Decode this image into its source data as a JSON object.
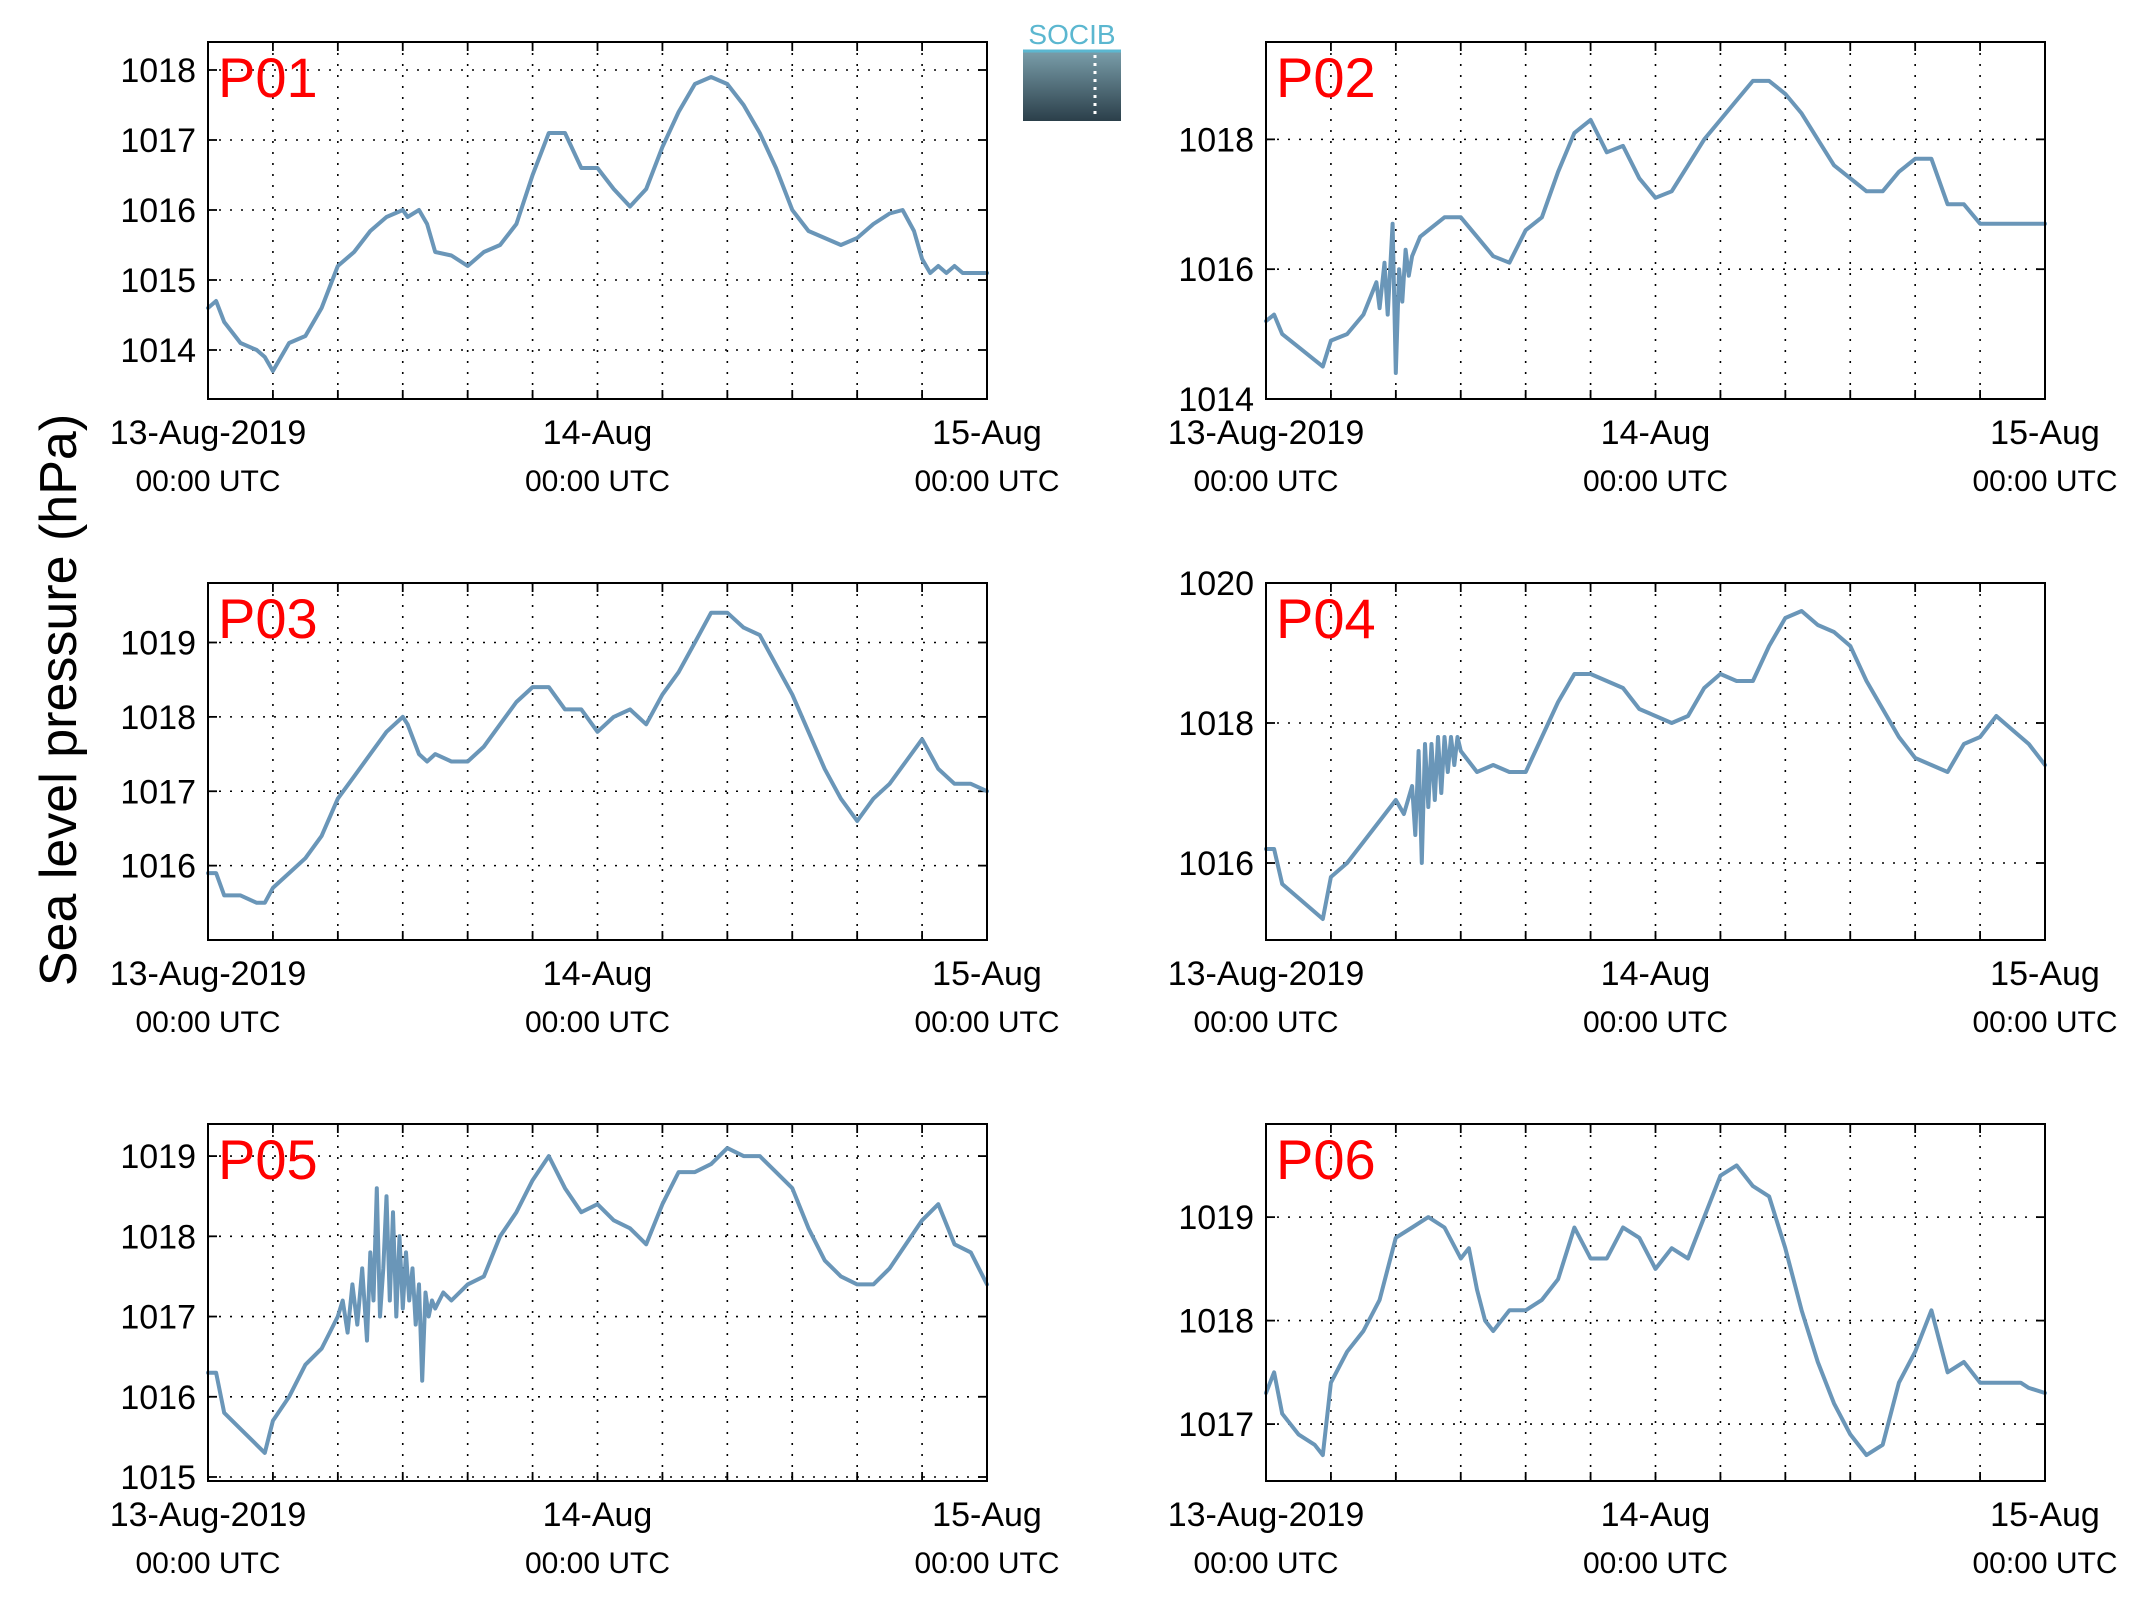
{
  "figure": {
    "ylabel": "Sea level pressure (hPa)",
    "logo_text": "SOCIB",
    "line_color": "#6a96b8",
    "title_color": "#ff0000"
  },
  "chart_data": [
    {
      "type": "line",
      "title": "P01",
      "xlabels": [
        {
          "x": 0,
          "line1": "13-Aug-2019",
          "line2": "00:00 UTC"
        },
        {
          "x": 24,
          "line1": "14-Aug",
          "line2": "00:00 UTC"
        },
        {
          "x": 48,
          "line1": "15-Aug",
          "line2": "00:00 UTC"
        }
      ],
      "xlim": [
        0,
        48
      ],
      "ylim": [
        1013.3,
        1018.4
      ],
      "yticks": [
        1014,
        1015,
        1016,
        1017,
        1018
      ],
      "grid": true,
      "series": [
        {
          "x": [
            0,
            0.5,
            1,
            2,
            3,
            3.5,
            4,
            5,
            6,
            7,
            8,
            9,
            10,
            11,
            12,
            12.3,
            13,
            13.5,
            14,
            15,
            16,
            17,
            18,
            19,
            20,
            21,
            22,
            23,
            24,
            25,
            26,
            27,
            28,
            29,
            30,
            31,
            32,
            33,
            34,
            35,
            36,
            37,
            38,
            39,
            40,
            41,
            42,
            42.8,
            43.5,
            44,
            44.5,
            45,
            45.5,
            46,
            46.5,
            47,
            48
          ],
          "y": [
            1014.6,
            1014.7,
            1014.4,
            1014.1,
            1014.0,
            1013.9,
            1013.7,
            1014.1,
            1014.2,
            1014.6,
            1015.2,
            1015.4,
            1015.7,
            1015.9,
            1016.0,
            1015.9,
            1016.0,
            1015.8,
            1015.4,
            1015.35,
            1015.2,
            1015.4,
            1015.5,
            1015.8,
            1016.5,
            1017.1,
            1017.1,
            1016.6,
            1016.6,
            1016.3,
            1016.05,
            1016.3,
            1016.9,
            1017.4,
            1017.8,
            1017.9,
            1017.8,
            1017.5,
            1017.1,
            1016.6,
            1016.0,
            1015.7,
            1015.6,
            1015.5,
            1015.6,
            1015.8,
            1015.95,
            1016.0,
            1015.7,
            1015.3,
            1015.1,
            1015.2,
            1015.1,
            1015.2,
            1015.1,
            1015.1,
            1015.1
          ]
        }
      ]
    },
    {
      "type": "line",
      "title": "P02",
      "xlabels": [
        {
          "x": 0,
          "line1": "13-Aug-2019",
          "line2": "00:00 UTC"
        },
        {
          "x": 24,
          "line1": "14-Aug",
          "line2": "00:00 UTC"
        },
        {
          "x": 48,
          "line1": "15-Aug",
          "line2": "00:00 UTC"
        }
      ],
      "xlim": [
        0,
        48
      ],
      "ylim": [
        1014,
        1019.5
      ],
      "yticks": [
        1014,
        1016,
        1018
      ],
      "grid": true,
      "series": [
        {
          "x": [
            0,
            0.5,
            1,
            2,
            3,
            3.5,
            4,
            5,
            6,
            6.8,
            7,
            7.3,
            7.5,
            7.8,
            8,
            8.2,
            8.4,
            8.6,
            8.8,
            9,
            9.5,
            10,
            11,
            12,
            13,
            14,
            15,
            16,
            17,
            18,
            19,
            20,
            21,
            22,
            23,
            24,
            25,
            26,
            27,
            28,
            29,
            30,
            31,
            32,
            33,
            34,
            35,
            36,
            37,
            38,
            39,
            40,
            41,
            42,
            43,
            44,
            45,
            46,
            47,
            48
          ],
          "y": [
            1015.2,
            1015.3,
            1015.0,
            1014.8,
            1014.6,
            1014.5,
            1014.9,
            1015.0,
            1015.3,
            1015.8,
            1015.4,
            1016.1,
            1015.3,
            1016.7,
            1014.4,
            1016.0,
            1015.5,
            1016.3,
            1015.9,
            1016.2,
            1016.5,
            1016.6,
            1016.8,
            1016.8,
            1016.5,
            1016.2,
            1016.1,
            1016.6,
            1016.8,
            1017.5,
            1018.1,
            1018.3,
            1017.8,
            1017.9,
            1017.4,
            1017.1,
            1017.2,
            1017.6,
            1018.0,
            1018.3,
            1018.6,
            1018.9,
            1018.9,
            1018.7,
            1018.4,
            1018.0,
            1017.6,
            1017.4,
            1017.2,
            1017.2,
            1017.5,
            1017.7,
            1017.7,
            1017.0,
            1017.0,
            1016.7,
            1016.7,
            1016.7,
            1016.7,
            1016.7
          ]
        }
      ]
    },
    {
      "type": "line",
      "title": "P03",
      "xlabels": [
        {
          "x": 0,
          "line1": "13-Aug-2019",
          "line2": "00:00 UTC"
        },
        {
          "x": 24,
          "line1": "14-Aug",
          "line2": "00:00 UTC"
        },
        {
          "x": 48,
          "line1": "15-Aug",
          "line2": "00:00 UTC"
        }
      ],
      "xlim": [
        0,
        48
      ],
      "ylim": [
        1015,
        1019.8
      ],
      "yticks": [
        1016,
        1017,
        1018,
        1019
      ],
      "grid": true,
      "series": [
        {
          "x": [
            0,
            0.5,
            1,
            2,
            3,
            3.5,
            4,
            5,
            6,
            7,
            8,
            9,
            10,
            11,
            12,
            12.3,
            13,
            13.5,
            14,
            15,
            16,
            17,
            18,
            19,
            20,
            21,
            22,
            23,
            24,
            25,
            26,
            27,
            28,
            29,
            30,
            31,
            32,
            33,
            34,
            35,
            36,
            37,
            38,
            39,
            40,
            41,
            42,
            43,
            44,
            45,
            46,
            47,
            48
          ],
          "y": [
            1015.9,
            1015.9,
            1015.6,
            1015.6,
            1015.5,
            1015.5,
            1015.7,
            1015.9,
            1016.1,
            1016.4,
            1016.9,
            1017.2,
            1017.5,
            1017.8,
            1018.0,
            1017.9,
            1017.5,
            1017.4,
            1017.5,
            1017.4,
            1017.4,
            1017.6,
            1017.9,
            1018.2,
            1018.4,
            1018.4,
            1018.1,
            1018.1,
            1017.8,
            1018.0,
            1018.1,
            1017.9,
            1018.3,
            1018.6,
            1019.0,
            1019.4,
            1019.4,
            1019.2,
            1019.1,
            1018.7,
            1018.3,
            1017.8,
            1017.3,
            1016.9,
            1016.6,
            1016.9,
            1017.1,
            1017.4,
            1017.7,
            1017.3,
            1017.1,
            1017.1,
            1017.0
          ]
        }
      ]
    },
    {
      "type": "line",
      "title": "P04",
      "xlabels": [
        {
          "x": 0,
          "line1": "13-Aug-2019",
          "line2": "00:00 UTC"
        },
        {
          "x": 24,
          "line1": "14-Aug",
          "line2": "00:00 UTC"
        },
        {
          "x": 48,
          "line1": "15-Aug",
          "line2": "00:00 UTC"
        }
      ],
      "xlim": [
        0,
        48
      ],
      "ylim": [
        1014.9,
        1020
      ],
      "yticks": [
        1016,
        1018,
        1020
      ],
      "grid": true,
      "series": [
        {
          "x": [
            0,
            0.5,
            1,
            2,
            3,
            3.5,
            4,
            5,
            6,
            7,
            8,
            8.5,
            9,
            9.2,
            9.4,
            9.6,
            9.8,
            10,
            10.2,
            10.4,
            10.6,
            10.8,
            11,
            11.2,
            11.4,
            11.6,
            11.8,
            12,
            13,
            14,
            15,
            16,
            17,
            18,
            19,
            20,
            21,
            22,
            23,
            24,
            25,
            26,
            27,
            28,
            29,
            30,
            31,
            32,
            33,
            34,
            35,
            36,
            37,
            38,
            39,
            40,
            41,
            42,
            43,
            44,
            45,
            46,
            47,
            48
          ],
          "y": [
            1016.2,
            1016.2,
            1015.7,
            1015.5,
            1015.3,
            1015.2,
            1015.8,
            1016.0,
            1016.3,
            1016.6,
            1016.9,
            1016.7,
            1017.1,
            1016.4,
            1017.6,
            1016.0,
            1017.7,
            1016.8,
            1017.7,
            1016.9,
            1017.8,
            1017.0,
            1017.8,
            1017.3,
            1017.8,
            1017.4,
            1017.8,
            1017.6,
            1017.3,
            1017.4,
            1017.3,
            1017.3,
            1017.8,
            1018.3,
            1018.7,
            1018.7,
            1018.6,
            1018.5,
            1018.2,
            1018.1,
            1018.0,
            1018.1,
            1018.5,
            1018.7,
            1018.6,
            1018.6,
            1019.1,
            1019.5,
            1019.6,
            1019.4,
            1019.3,
            1019.1,
            1018.6,
            1018.2,
            1017.8,
            1017.5,
            1017.4,
            1017.3,
            1017.7,
            1017.8,
            1018.1,
            1017.9,
            1017.7,
            1017.4
          ]
        }
      ]
    },
    {
      "type": "line",
      "title": "P05",
      "xlabels": [
        {
          "x": 0,
          "line1": "13-Aug-2019",
          "line2": "00:00 UTC"
        },
        {
          "x": 24,
          "line1": "14-Aug",
          "line2": "00:00 UTC"
        },
        {
          "x": 48,
          "line1": "15-Aug",
          "line2": "00:00 UTC"
        }
      ],
      "xlim": [
        0,
        48
      ],
      "ylim": [
        1014.95,
        1019.4
      ],
      "yticks": [
        1015,
        1016,
        1017,
        1018,
        1019
      ],
      "grid": true,
      "series": [
        {
          "x": [
            0,
            0.5,
            1,
            2,
            3,
            3.5,
            4,
            5,
            6,
            7,
            7.5,
            8,
            8.3,
            8.6,
            8.9,
            9.2,
            9.5,
            9.8,
            10,
            10.2,
            10.4,
            10.6,
            10.8,
            11,
            11.2,
            11.4,
            11.6,
            11.8,
            12,
            12.2,
            12.4,
            12.6,
            12.8,
            13,
            13.2,
            13.4,
            13.6,
            13.8,
            14,
            14.5,
            15,
            16,
            17,
            18,
            19,
            20,
            21,
            22,
            23,
            24,
            25,
            26,
            27,
            28,
            29,
            30,
            31,
            32,
            33,
            34,
            35,
            36,
            37,
            38,
            39,
            40,
            41,
            42,
            43,
            44,
            45,
            46,
            47,
            48
          ],
          "y": [
            1016.3,
            1016.3,
            1015.8,
            1015.6,
            1015.4,
            1015.3,
            1015.7,
            1016.0,
            1016.4,
            1016.6,
            1016.8,
            1017.0,
            1017.2,
            1016.8,
            1017.4,
            1016.9,
            1017.6,
            1016.7,
            1017.8,
            1017.2,
            1018.6,
            1017.0,
            1017.6,
            1018.5,
            1017.2,
            1018.3,
            1017.0,
            1018.0,
            1017.1,
            1017.8,
            1017.2,
            1017.6,
            1016.9,
            1017.4,
            1016.2,
            1017.3,
            1017.0,
            1017.2,
            1017.1,
            1017.3,
            1017.2,
            1017.4,
            1017.5,
            1018.0,
            1018.3,
            1018.7,
            1019.0,
            1018.6,
            1018.3,
            1018.4,
            1018.2,
            1018.1,
            1017.9,
            1018.4,
            1018.8,
            1018.8,
            1018.9,
            1019.1,
            1019.0,
            1019.0,
            1018.8,
            1018.6,
            1018.1,
            1017.7,
            1017.5,
            1017.4,
            1017.4,
            1017.6,
            1017.9,
            1018.2,
            1018.4,
            1017.9,
            1017.8,
            1017.4
          ]
        }
      ]
    },
    {
      "type": "line",
      "title": "P06",
      "xlabels": [
        {
          "x": 0,
          "line1": "13-Aug-2019",
          "line2": "00:00 UTC"
        },
        {
          "x": 24,
          "line1": "14-Aug",
          "line2": "00:00 UTC"
        },
        {
          "x": 48,
          "line1": "15-Aug",
          "line2": "00:00 UTC"
        }
      ],
      "xlim": [
        0,
        48
      ],
      "ylim": [
        1016.45,
        1019.9
      ],
      "yticks": [
        1017,
        1018,
        1019
      ],
      "grid": true,
      "series": [
        {
          "x": [
            0,
            0.5,
            1,
            2,
            3,
            3.5,
            4,
            5,
            6,
            7,
            8,
            9,
            10,
            11,
            12,
            12.5,
            13,
            13.5,
            14,
            15,
            16,
            17,
            18,
            19,
            20,
            21,
            22,
            23,
            24,
            25,
            26,
            27,
            28,
            29,
            30,
            31,
            32,
            33,
            34,
            35,
            36,
            37,
            38,
            39,
            40,
            41,
            42,
            43,
            44,
            45,
            46,
            46.5,
            47,
            48
          ],
          "y": [
            1017.3,
            1017.5,
            1017.1,
            1016.9,
            1016.8,
            1016.7,
            1017.4,
            1017.7,
            1017.9,
            1018.2,
            1018.8,
            1018.9,
            1019.0,
            1018.9,
            1018.6,
            1018.7,
            1018.3,
            1018.0,
            1017.9,
            1018.1,
            1018.1,
            1018.2,
            1018.4,
            1018.9,
            1018.6,
            1018.6,
            1018.9,
            1018.8,
            1018.5,
            1018.7,
            1018.6,
            1019.0,
            1019.4,
            1019.5,
            1019.3,
            1019.2,
            1018.7,
            1018.1,
            1017.6,
            1017.2,
            1016.9,
            1016.7,
            1016.8,
            1017.4,
            1017.7,
            1018.1,
            1017.5,
            1017.6,
            1017.4,
            1017.4,
            1017.4,
            1017.4,
            1017.35,
            1017.3
          ]
        }
      ]
    }
  ]
}
